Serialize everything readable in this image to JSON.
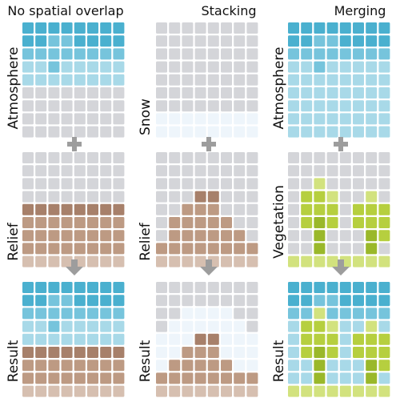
{
  "colors": {
    "empty": "#d4d5d9",
    "atmo_dark": "#4ab0cf",
    "atmo_mid": "#76c4dc",
    "atmo_light": "#a8d9e8",
    "snow": "#eef5fb",
    "relief_dark": "#a7806a",
    "relief_mid": "#bd9a83",
    "relief_light": "#d6bfb0",
    "veg_dark": "#9ab82a",
    "veg_mid": "#b6cf3f",
    "veg_light": "#d2e27e",
    "operator": "#9d9d9d"
  },
  "columns": [
    {
      "title": "No spatial overlap",
      "panels": [
        {
          "label": "Atmosphere",
          "rows": [
            "DDDDDDDD",
            "DDMMDDDD",
            "MMMMMMMM",
            "LLMLLLLL",
            "LLLLLLLL",
            "EEEEEEEE",
            "EEEEEEEE",
            "EEEEEEEE",
            "EEEEEEEE"
          ]
        },
        {
          "label": "Relief",
          "rows": [
            "EEEEEEEE",
            "EEEEEEEE",
            "EEEEEEEE",
            "EEEEEEEE",
            "RRRRRRRR",
            "QQQQQQQQ",
            "QQQQQQQQ",
            "QQQQQQQQ",
            "PPPPPPPP"
          ]
        },
        {
          "label": "Result",
          "rows": [
            "DDDDDDDD",
            "DDMMDDDD",
            "MMMMMMMM",
            "LLMLLLLL",
            "LLLLLLLL",
            "RRRRRRRR",
            "QQQQQQQQ",
            "QQQQQQQQ",
            "PPPPPPPP"
          ]
        }
      ]
    },
    {
      "title": "Stacking",
      "panels": [
        {
          "label": "Snow",
          "rows": [
            "EEEEEEEE",
            "EEEEEEEE",
            "EEEEEEEE",
            "EEEEEEEE",
            "EEEEEEEE",
            "EEEEEEEE",
            "EEEEEEEE",
            "SSSSSSSS",
            "SSSSSSSS"
          ]
        },
        {
          "label": "Relief",
          "rows": [
            "EEEEEEEE",
            "EEEEEEEE",
            "EEEEEEEE",
            "EEERREEE",
            "EEQQQEEE",
            "EQQQQQEE",
            "EQQQQQQE",
            "QQQQQQQQ",
            "PPPPPPPP"
          ]
        },
        {
          "label": "Result",
          "rows": [
            "EEEEEEEE",
            "EEEEEEEE",
            "EESSSSEE",
            "ESSSSSSE",
            "SSSRRSSS",
            "SSQQQSSS",
            "SQQQQQSS",
            "QQQQQQQQ",
            "PPPPPPPP"
          ]
        }
      ]
    },
    {
      "title": "Merging",
      "panels": [
        {
          "label": "Atmosphere",
          "rows": [
            "DDDDDDDD",
            "DDMMDDDD",
            "MMMMMMMM",
            "LLMLLLLL",
            "LLLLLLLL",
            "LLLLLLLL",
            "LLLLLLLL",
            "LLLLLLLL",
            "LLLLLLLL"
          ]
        },
        {
          "label": "Vegetation",
          "rows": [
            "EEEEEEEE",
            "EEEEEEEE",
            "EEYEEEEE",
            "EVVYEEYE",
            "EVVVEVVV",
            "EVGVEVVV",
            "EEGEEEGV",
            "EEGEEEGE",
            "YYYYYYYY"
          ]
        },
        {
          "label": "Result",
          "rows": [
            "DDDDDDDD",
            "DDMMDDDD",
            "MMYMMMMM",
            "LVVYLLYL",
            "LVVVLVVV",
            "LVGVLVVV",
            "LLGLLLGV",
            "LLGLLLGL",
            "YYYYYYYY"
          ]
        }
      ]
    }
  ]
}
